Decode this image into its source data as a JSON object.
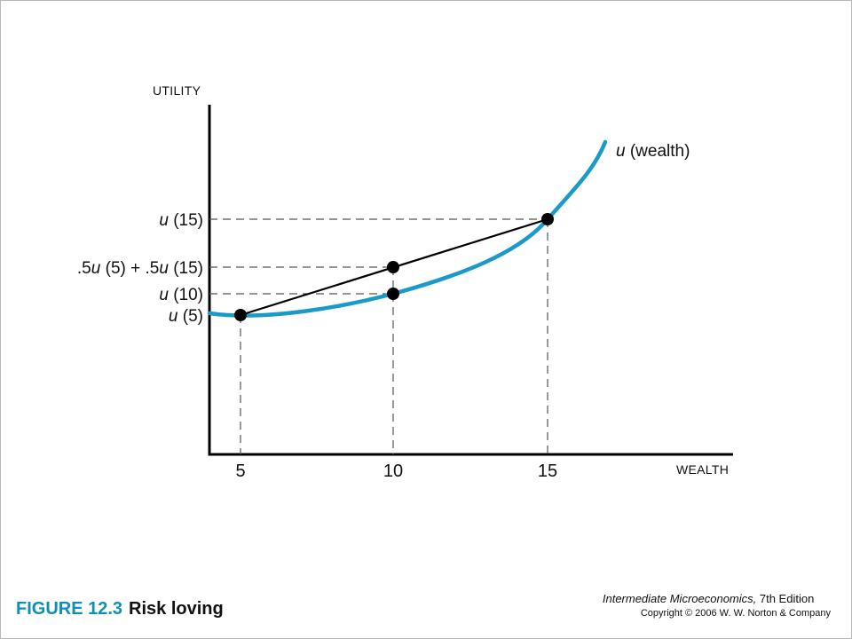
{
  "figure": {
    "number": "FIGURE 12.3",
    "title": "Risk loving"
  },
  "credit": {
    "book_title": "Intermediate Microeconomics,",
    "edition": " 7th Edition",
    "copyright": "Copyright © 2006 W. W. Norton & Company"
  },
  "axes": {
    "y_label": "UTILITY",
    "x_label": "WEALTH"
  },
  "curve": {
    "name_italic": "u",
    "name_rest": " (wealth)",
    "color": "#1a9ac9"
  },
  "x_ticks": [
    "5",
    "10",
    "15"
  ],
  "y_ticks": {
    "u15": {
      "italic": "u",
      "rest": " (15)"
    },
    "mix": {
      "p1": ".5",
      "i1": "u",
      "p2": " (5) + .5",
      "i2": "u",
      "p3": " (15)"
    },
    "u10": {
      "italic": "u",
      "rest": " (10)"
    },
    "u5": {
      "italic": "u",
      "rest": " (5)"
    }
  },
  "colors": {
    "dashes": "#555555",
    "points": "#000000",
    "chord": "#000000",
    "accent": "#0e8fb8"
  }
}
